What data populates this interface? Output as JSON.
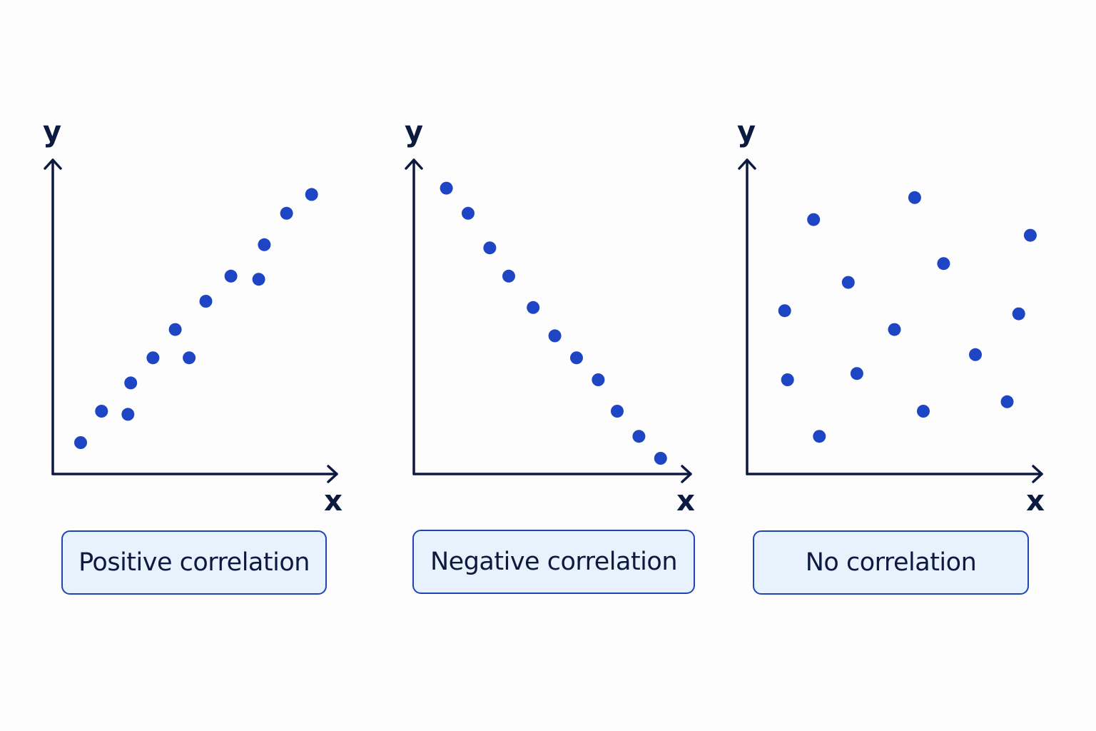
{
  "colors": {
    "axis": "#0d1a40",
    "point": "#1d45c4",
    "caption_border": "#1f45b5",
    "caption_fill": "#e8f2fd",
    "caption_text": "#0d1a40"
  },
  "chart_data": [
    {
      "type": "scatter",
      "caption": "Positive correlation",
      "xlabel": "x",
      "ylabel": "y",
      "xlim": [
        0,
        10
      ],
      "ylim": [
        0,
        10
      ],
      "grid": false,
      "points": [
        {
          "x": 1.0,
          "y": 1.0
        },
        {
          "x": 1.75,
          "y": 2.0
        },
        {
          "x": 2.7,
          "y": 1.9
        },
        {
          "x": 2.8,
          "y": 2.9
        },
        {
          "x": 3.6,
          "y": 3.7
        },
        {
          "x": 4.4,
          "y": 4.6
        },
        {
          "x": 4.9,
          "y": 3.7
        },
        {
          "x": 5.5,
          "y": 5.5
        },
        {
          "x": 6.4,
          "y": 6.3
        },
        {
          "x": 7.4,
          "y": 6.2
        },
        {
          "x": 7.6,
          "y": 7.3
        },
        {
          "x": 8.4,
          "y": 8.3
        },
        {
          "x": 9.3,
          "y": 8.9
        }
      ]
    },
    {
      "type": "scatter",
      "caption": "Negative correlation",
      "xlabel": "x",
      "ylabel": "y",
      "xlim": [
        0,
        10
      ],
      "ylim": [
        0,
        10
      ],
      "grid": false,
      "points": [
        {
          "x": 1.2,
          "y": 9.1
        },
        {
          "x": 2.0,
          "y": 8.3
        },
        {
          "x": 2.8,
          "y": 7.2
        },
        {
          "x": 3.5,
          "y": 6.3
        },
        {
          "x": 4.4,
          "y": 5.3
        },
        {
          "x": 5.2,
          "y": 4.4
        },
        {
          "x": 6.0,
          "y": 3.7
        },
        {
          "x": 6.8,
          "y": 3.0
        },
        {
          "x": 7.5,
          "y": 2.0
        },
        {
          "x": 8.3,
          "y": 1.2
        },
        {
          "x": 9.1,
          "y": 0.5
        }
      ]
    },
    {
      "type": "scatter",
      "caption": "No correlation",
      "xlabel": "x",
      "ylabel": "y",
      "xlim": [
        0,
        10
      ],
      "ylim": [
        0,
        10
      ],
      "grid": false,
      "points": [
        {
          "x": 1.3,
          "y": 5.2
        },
        {
          "x": 1.4,
          "y": 3.0
        },
        {
          "x": 2.3,
          "y": 8.1
        },
        {
          "x": 2.5,
          "y": 1.2
        },
        {
          "x": 3.5,
          "y": 6.1
        },
        {
          "x": 3.8,
          "y": 3.2
        },
        {
          "x": 5.1,
          "y": 4.6
        },
        {
          "x": 5.8,
          "y": 8.8
        },
        {
          "x": 6.1,
          "y": 2.0
        },
        {
          "x": 6.8,
          "y": 6.7
        },
        {
          "x": 7.9,
          "y": 3.8
        },
        {
          "x": 9.0,
          "y": 2.3
        },
        {
          "x": 9.4,
          "y": 5.1
        },
        {
          "x": 9.8,
          "y": 7.6
        }
      ]
    }
  ]
}
